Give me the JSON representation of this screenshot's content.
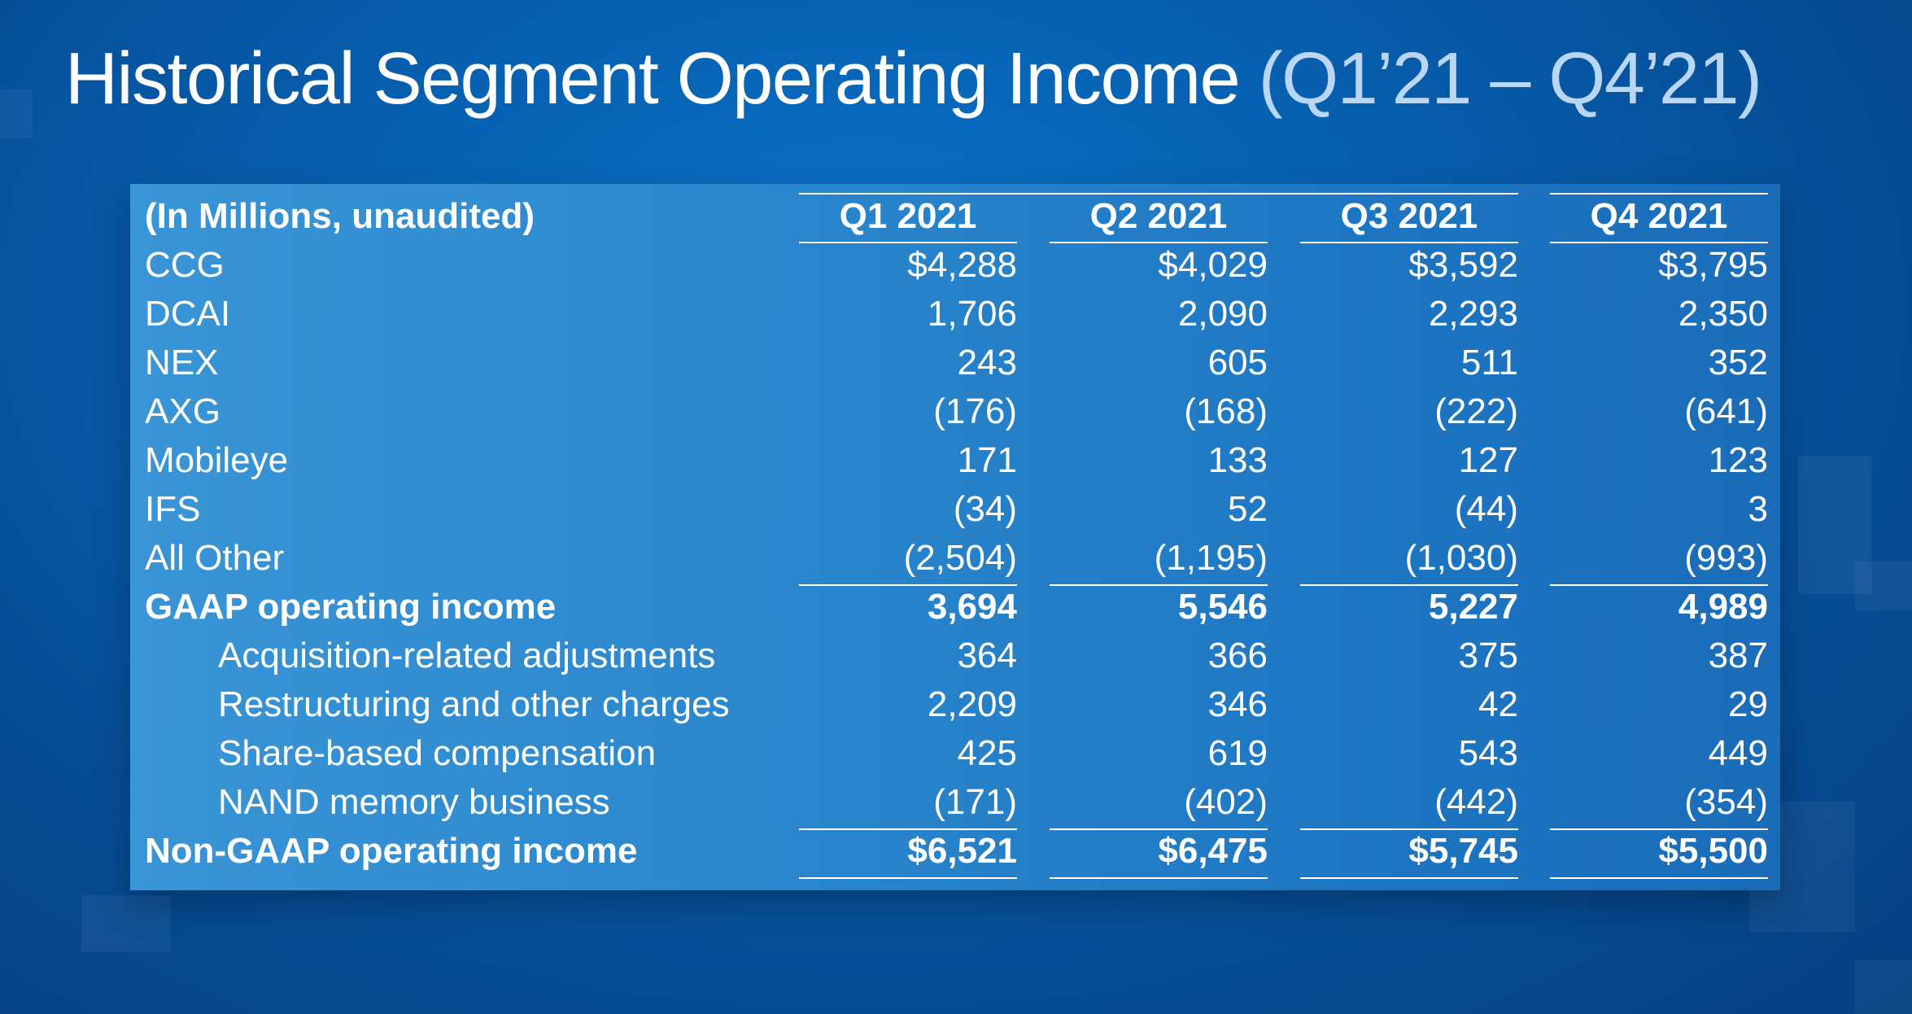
{
  "slide": {
    "title_main": "Historical Segment Operating Income ",
    "title_period": "(Q1’21 – Q4’21)"
  },
  "table": {
    "unit_label": "(In Millions, unaudited)",
    "columns": [
      "Q1 2021",
      "Q2 2021",
      "Q3 2021",
      "Q4 2021"
    ],
    "rows": [
      {
        "label": "CCG",
        "values": [
          "$4,288",
          "$4,029",
          "$3,592",
          "$3,795"
        ]
      },
      {
        "label": "DCAI",
        "values": [
          "1,706",
          "2,090",
          "2,293",
          "2,350"
        ]
      },
      {
        "label": "NEX",
        "values": [
          "243",
          "605",
          "511",
          "352"
        ]
      },
      {
        "label": "AXG",
        "values": [
          "(176)",
          "(168)",
          "(222)",
          "(641)"
        ]
      },
      {
        "label": "Mobileye",
        "values": [
          "171",
          "133",
          "127",
          "123"
        ]
      },
      {
        "label": "IFS",
        "values": [
          "(34)",
          "52",
          "(44)",
          "3"
        ]
      },
      {
        "label": "All Other",
        "values": [
          "(2,504)",
          "(1,195)",
          "(1,030)",
          "(993)"
        ]
      },
      {
        "label": "GAAP operating income",
        "values": [
          "3,694",
          "5,546",
          "5,227",
          "4,989"
        ]
      },
      {
        "label": "Acquisition-related adjustments",
        "values": [
          "364",
          "366",
          "375",
          "387"
        ]
      },
      {
        "label": "Restructuring and other charges",
        "values": [
          "2,209",
          "346",
          "42",
          "29"
        ]
      },
      {
        "label": "Share-based compensation",
        "values": [
          "425",
          "619",
          "543",
          "449"
        ]
      },
      {
        "label": "NAND memory business",
        "values": [
          "(171)",
          "(402)",
          "(442)",
          "(354)"
        ]
      },
      {
        "label": "Non-GAAP operating income",
        "values": [
          "$6,521",
          "$6,475",
          "$5,745",
          "$5,500"
        ]
      }
    ]
  },
  "colors": {
    "background": "#0760b0",
    "panel": "#2a86cc",
    "title_period": "#b9d6f5"
  }
}
